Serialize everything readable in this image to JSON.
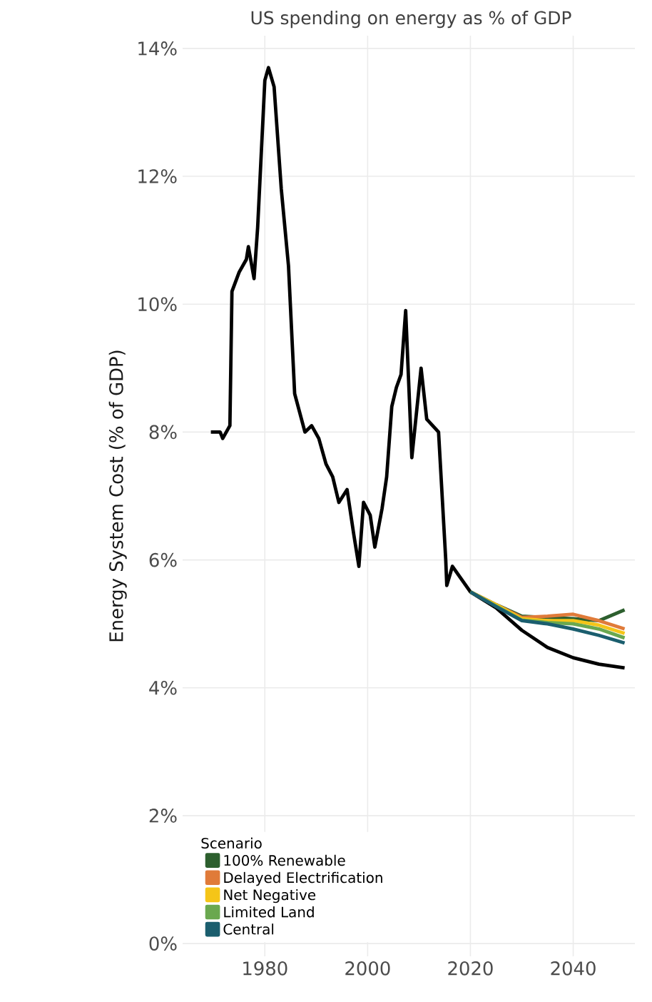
{
  "chart_data": {
    "type": "line",
    "title": "US spending on energy as % of GDP",
    "ylabel": "Energy System Cost (% of GDP)",
    "legend_title": "Scenario",
    "xlim": [
      1964,
      2052
    ],
    "ylim": [
      -0.2,
      14.2
    ],
    "xticks": [
      1980,
      2000,
      2020,
      2040
    ],
    "yticks": [
      {
        "value": 0,
        "label": "0%"
      },
      {
        "value": 2,
        "label": "2%"
      },
      {
        "value": 4,
        "label": "4%"
      },
      {
        "value": 6,
        "label": "6%"
      },
      {
        "value": 8,
        "label": "8%"
      },
      {
        "value": 10,
        "label": "10%"
      },
      {
        "value": 12,
        "label": "12%"
      },
      {
        "value": 14,
        "label": "14%"
      }
    ],
    "grid": true,
    "legend": "bottom left",
    "marker": "none",
    "line_style": "solid",
    "series": [
      {
        "color": "#000000",
        "x": [
          1969.5,
          1971.3,
          1971.8,
          1973.2,
          1973.6,
          1975,
          1976.4,
          1976.8,
          1977.9,
          1978.6,
          1980,
          1980.7,
          1981.8,
          1983.2,
          1984.6,
          1985.8,
          1986.8,
          1987.8,
          1989.1,
          1990.5,
          1991.9,
          1993.2,
          1994.4,
          1996,
          1997.3,
          1998.3,
          1999.2,
          2000.5,
          2001.4,
          2002.8,
          2003.7,
          2004.7,
          2005.6,
          2006.5,
          2007.4,
          2008.6,
          2010.4,
          2011.5,
          2013.8,
          2015.2,
          2015.4,
          2016.5,
          2020,
          2025,
          2030,
          2035,
          2040,
          2045,
          2050
        ],
        "values": [
          8.0,
          8.0,
          7.9,
          8.1,
          10.2,
          10.5,
          10.7,
          10.9,
          10.4,
          11.2,
          13.5,
          13.7,
          13.4,
          11.8,
          10.6,
          8.6,
          8.3,
          8.0,
          8.1,
          7.9,
          7.5,
          7.3,
          6.9,
          7.1,
          6.4,
          5.9,
          6.9,
          6.7,
          6.2,
          6.8,
          7.3,
          8.4,
          8.7,
          8.9,
          9.9,
          7.6,
          9.0,
          8.2,
          8.0,
          6.0,
          5.6,
          5.9,
          5.5,
          5.25,
          4.9,
          4.63,
          4.47,
          4.37,
          4.31
        ]
      },
      {
        "name": "100% Renewable",
        "color": "#2d5f2e",
        "x": [
          2020,
          2025,
          2030,
          2035,
          2040,
          2045,
          2050
        ],
        "values": [
          5.5,
          5.3,
          5.12,
          5.1,
          5.08,
          5.05,
          5.22
        ]
      },
      {
        "name": "Delayed Electrification",
        "color": "#e07b39",
        "x": [
          2020,
          2025,
          2030,
          2035,
          2040,
          2045,
          2050
        ],
        "values": [
          5.5,
          5.3,
          5.1,
          5.12,
          5.15,
          5.05,
          4.92
        ]
      },
      {
        "name": "Net Negative",
        "color": "#f5c518",
        "x": [
          2020,
          2025,
          2030,
          2035,
          2040,
          2045,
          2050
        ],
        "values": [
          5.5,
          5.3,
          5.08,
          5.05,
          5.05,
          4.98,
          4.85
        ]
      },
      {
        "name": "Limited Land",
        "color": "#6aa84f",
        "x": [
          2020,
          2025,
          2030,
          2035,
          2040,
          2045,
          2050
        ],
        "values": [
          5.5,
          5.28,
          5.06,
          5.02,
          5.0,
          4.92,
          4.78
        ]
      },
      {
        "name": "Central",
        "color": "#1b5e6e",
        "x": [
          2020,
          2025,
          2030,
          2035,
          2040,
          2045,
          2050
        ],
        "values": [
          5.5,
          5.27,
          5.05,
          5.0,
          4.92,
          4.82,
          4.7
        ]
      }
    ]
  }
}
